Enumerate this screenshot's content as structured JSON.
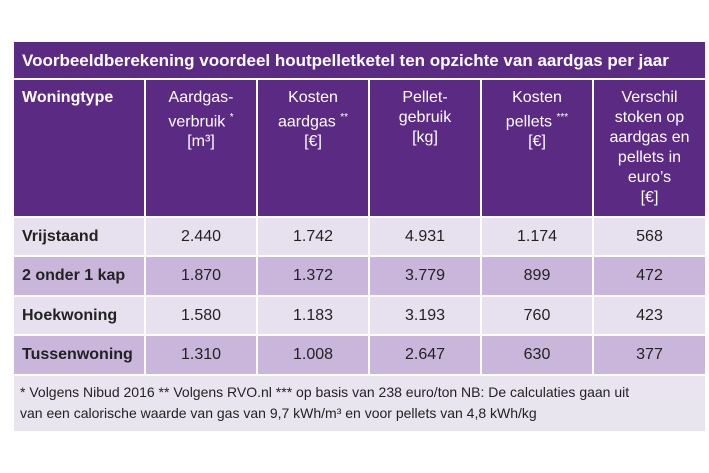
{
  "table": {
    "title": "Voorbeeldberekening voordeel houtpelletketel ten opzichte van aardgas per jaar",
    "header": [
      {
        "lines": [
          "Woningtype"
        ]
      },
      {
        "lines": [
          "Aardgas-",
          "verbruik",
          "[m³]"
        ],
        "note": "*"
      },
      {
        "lines": [
          "Kosten",
          "aardgas",
          "[€]"
        ],
        "note": "**"
      },
      {
        "lines": [
          "Pellet-",
          "gebruik",
          "[kg]"
        ]
      },
      {
        "lines": [
          "Kosten",
          "pellets",
          "[€]"
        ],
        "note": "***"
      },
      {
        "lines": [
          "Verschil",
          "stoken op",
          "aardgas en",
          "pellets in",
          "euro’s",
          "[€]"
        ]
      }
    ],
    "rows": [
      [
        "Vrijstaand",
        "2.440",
        "1.742",
        "4.931",
        "1.174",
        "568"
      ],
      [
        "2 onder 1 kap",
        "1.870",
        "1.372",
        "3.779",
        "899",
        "472"
      ],
      [
        "Hoekwoning",
        "1.580",
        "1.183",
        "3.193",
        "760",
        "423"
      ],
      [
        "Tussenwoning",
        "1.310",
        "1.008",
        "2.647",
        "630",
        "377"
      ]
    ],
    "footnote": [
      "* Volgens Nibud 2016  ** Volgens RVO.nl  *** op basis van 238 euro/ton  NB: De calculaties gaan uit",
      "van een calorische waarde van gas van 9,7 kWh/m³ en voor pellets van 4,8 kWh/kg"
    ]
  }
}
